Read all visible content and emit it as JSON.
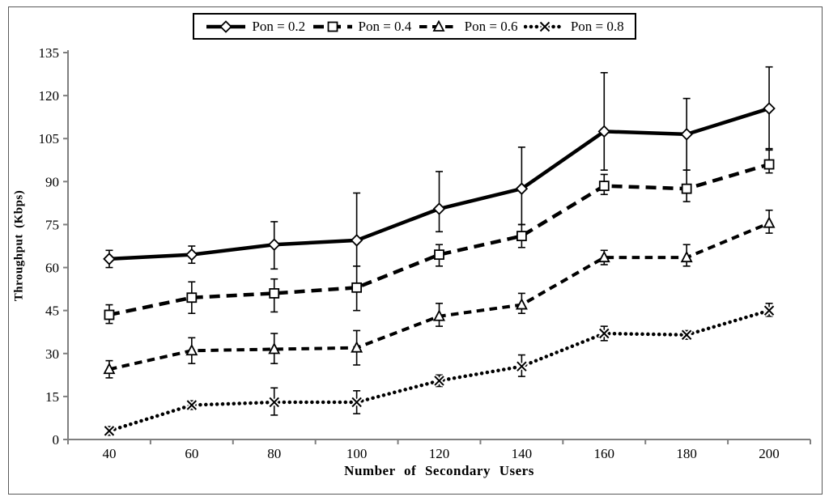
{
  "chart_data": {
    "type": "line",
    "title": "",
    "xlabel": "Number of Secondary Users",
    "ylabel": "Throughput  (Kbps)",
    "x_categories": [
      40,
      60,
      80,
      100,
      120,
      140,
      160,
      180,
      200
    ],
    "y_ticks": [
      0,
      15,
      30,
      45,
      60,
      75,
      90,
      105,
      120,
      135
    ],
    "ylim": [
      0,
      135
    ],
    "grid": false,
    "legend_position": "top-center",
    "colors": {
      "line": "#000000",
      "axis": "#7f7f7f",
      "marker_fill": "#ffffff",
      "text": "#000000"
    },
    "series": [
      {
        "name": "Pon = 0.2",
        "line_style": "solid",
        "marker": "diamond",
        "values": [
          63,
          64.5,
          68,
          69.5,
          80.5,
          87.5,
          107.5,
          106.5,
          115.5
        ],
        "error_up": [
          3,
          3,
          8,
          16.5,
          13,
          14.5,
          20.5,
          12.5,
          14.5
        ],
        "error_down": [
          3,
          3,
          8.5,
          9,
          8,
          12.5,
          13.5,
          12.5,
          14
        ]
      },
      {
        "name": "Pon = 0.4",
        "line_style": "long-dash",
        "marker": "square",
        "values": [
          43.5,
          49.5,
          51,
          53,
          64.5,
          71,
          88.5,
          87.5,
          96
        ],
        "error_up": [
          3.5,
          5.5,
          5,
          7.5,
          3.5,
          4,
          4,
          6.5,
          5
        ],
        "error_down": [
          3,
          5.5,
          6.5,
          8,
          4,
          4,
          3,
          4.5,
          3
        ]
      },
      {
        "name": "Pon = 0.6",
        "line_style": "dash",
        "marker": "triangle",
        "values": [
          24.5,
          31,
          31.5,
          32,
          43,
          47,
          63.5,
          63.5,
          75.5
        ],
        "error_up": [
          3,
          4.5,
          5.5,
          6,
          4.5,
          4,
          2.5,
          4.5,
          4.5
        ],
        "error_down": [
          3,
          4.5,
          5,
          6,
          3.5,
          3,
          2.5,
          3,
          3.5
        ]
      },
      {
        "name": "Pon = 0.8",
        "line_style": "dot",
        "marker": "x",
        "values": [
          3,
          12,
          13,
          13,
          20.5,
          25.5,
          37,
          36.5,
          45
        ],
        "error_up": [
          1.5,
          1.5,
          5,
          4,
          2,
          4,
          2.5,
          1.5,
          2.5
        ],
        "error_down": [
          1.5,
          1.5,
          4.5,
          4,
          2,
          3.5,
          2.5,
          1.5,
          2
        ]
      }
    ]
  }
}
